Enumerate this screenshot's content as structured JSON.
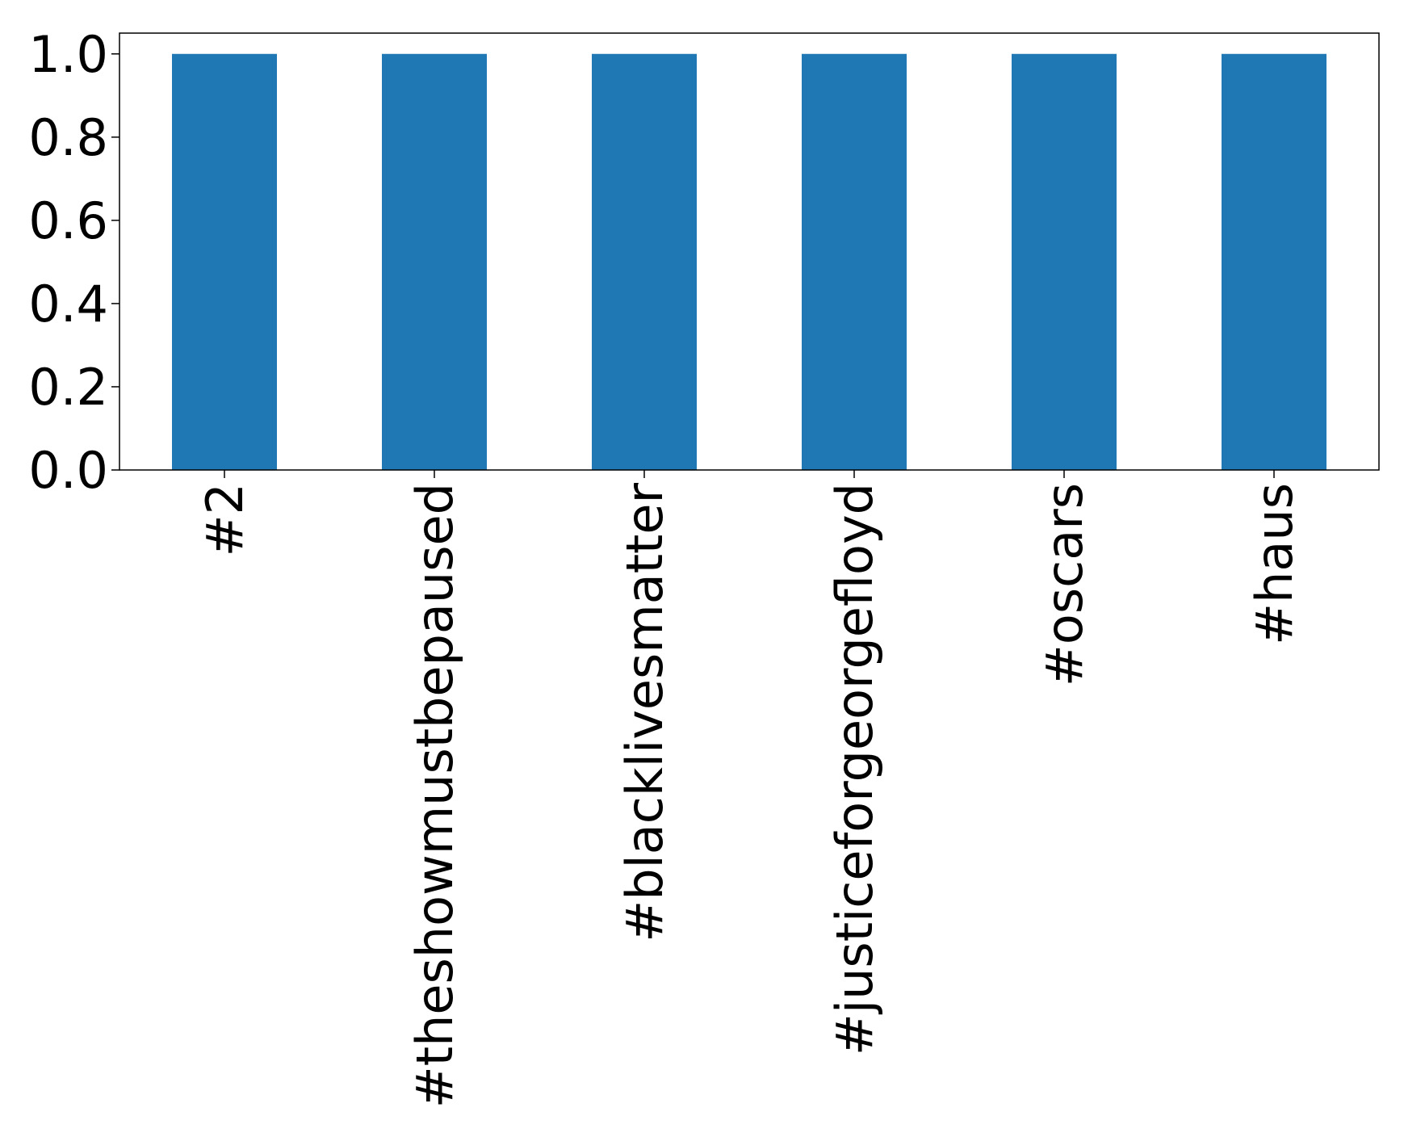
{
  "chart_data": {
    "type": "bar",
    "categories": [
      "#2",
      "#theshowmustbepaused",
      "#blacklivesmatter",
      "#justiceforgeorgefloyd",
      "#oscars",
      "#haus"
    ],
    "values": [
      1,
      1,
      1,
      1,
      1,
      1
    ],
    "color": "#1f77b4",
    "ylim": [
      0,
      1.05
    ],
    "yticks": [
      {
        "value": 0,
        "label": "0.0"
      },
      0.2,
      0.4,
      0.6,
      0.8,
      {
        "value": 1,
        "label": "1.0"
      }
    ],
    "grid": false
  }
}
